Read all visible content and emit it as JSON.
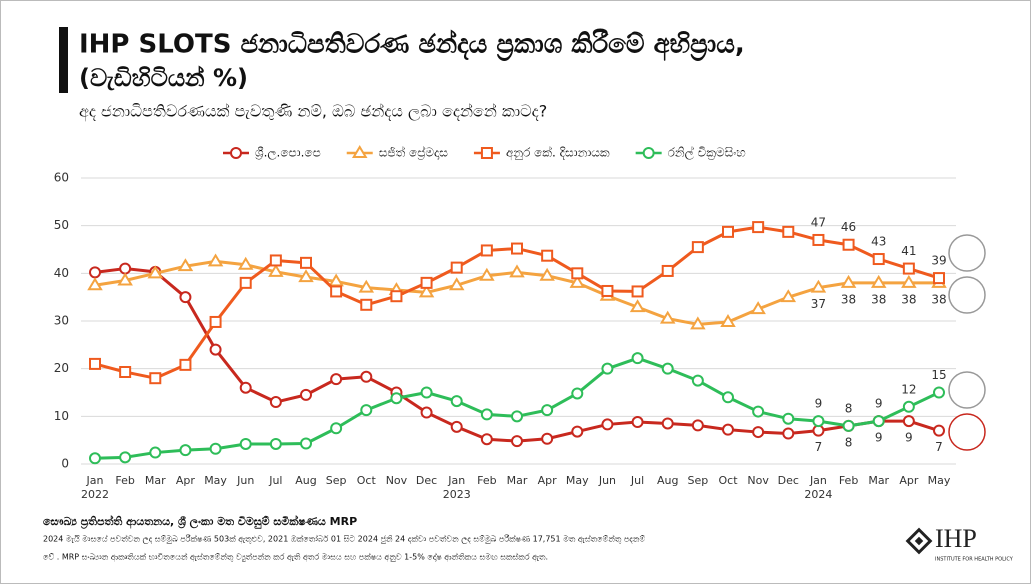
{
  "chart_data": {
    "type": "line",
    "title": "IHP SLOTS ජනාධිපතිවරණ ඡන්දය ප්‍රකාශ කිරීමේ අභිප්‍රාය,",
    "title_line2": "(වැඩිහිටියන් %)",
    "subtitle": "අද ජනාධිපතිවරණයක් පැවතුණි නම්, ඔබ ඡන්දය ලබා දෙන්නේ කාටද?",
    "categories": [
      "Jan",
      "Feb",
      "Mar",
      "Apr",
      "May",
      "Jun",
      "Jul",
      "Aug",
      "Sep",
      "Oct",
      "Nov",
      "Dec",
      "Jan",
      "Feb",
      "Mar",
      "Apr",
      "May",
      "Jun",
      "Jul",
      "Aug",
      "Sep",
      "Oct",
      "Nov",
      "Dec",
      "Jan",
      "Feb",
      "Mar",
      "Apr",
      "May"
    ],
    "year_labels": [
      {
        "category": 0,
        "label": "2022"
      },
      {
        "category": 12,
        "label": "2023"
      },
      {
        "category": 24,
        "label": "2024"
      }
    ],
    "ylim": [
      0,
      60
    ],
    "yticks": [
      0,
      10,
      20,
      30,
      40,
      50,
      60
    ],
    "grid": true,
    "series": [
      {
        "name": "ශ්‍රී.ල.පො.පෙ",
        "color": "#c8281e",
        "marker": "circle",
        "label_position": "below",
        "values": [
          40.2,
          41,
          40.3,
          35,
          24,
          16,
          13,
          14.5,
          17.8,
          18.3,
          15,
          10.8,
          7.8,
          5.2,
          4.8,
          5.3,
          6.8,
          8.3,
          8.8,
          8.5,
          8.1,
          7.2,
          6.7,
          6.4,
          7,
          8,
          9,
          9,
          7
        ],
        "value_labels": [
          null,
          null,
          null,
          null,
          null,
          null,
          null,
          null,
          null,
          null,
          null,
          null,
          null,
          null,
          null,
          null,
          null,
          null,
          null,
          null,
          null,
          null,
          null,
          null,
          7,
          8,
          9,
          9,
          7
        ]
      },
      {
        "name": "සජිත් ප්‍රේමදාස",
        "color": "#f4a340",
        "marker": "triangle",
        "label_position": "below",
        "values": [
          37.5,
          38.5,
          40,
          41.5,
          42.5,
          41.8,
          40.3,
          39.2,
          38.3,
          37,
          36.5,
          36,
          37.5,
          39.5,
          40.2,
          39.5,
          38,
          35.3,
          32.9,
          30.5,
          29.3,
          29.8,
          32.5,
          35,
          37,
          38,
          38,
          38,
          38
        ],
        "value_labels": [
          null,
          null,
          null,
          null,
          null,
          null,
          null,
          null,
          null,
          null,
          null,
          null,
          null,
          null,
          null,
          null,
          null,
          null,
          null,
          null,
          null,
          null,
          null,
          null,
          37,
          38,
          38,
          38,
          38
        ]
      },
      {
        "name": "අනුර කේ. දිසානායක",
        "color": "#ef5a1e",
        "marker": "square",
        "label_position": "above",
        "values": [
          21,
          19.3,
          18,
          20.8,
          29.8,
          38,
          42.7,
          42.2,
          36.2,
          33.4,
          35.2,
          38,
          41.2,
          44.8,
          45.2,
          43.7,
          40,
          36.3,
          36.2,
          40.5,
          45.5,
          48.7,
          49.7,
          48.7,
          47,
          46,
          43,
          41,
          39
        ],
        "value_labels": [
          null,
          null,
          null,
          null,
          null,
          null,
          null,
          null,
          null,
          null,
          null,
          null,
          null,
          null,
          null,
          null,
          null,
          null,
          null,
          null,
          null,
          null,
          null,
          null,
          47,
          46,
          43,
          41,
          39
        ]
      },
      {
        "name": "රනිල් වික්‍රමසිංහ",
        "color": "#2ebd59",
        "marker": "circle",
        "label_position": "above",
        "values": [
          1.2,
          1.4,
          2.4,
          2.9,
          3.2,
          4.2,
          4.2,
          4.3,
          7.5,
          11.3,
          13.8,
          15,
          13.2,
          10.4,
          10,
          11.3,
          14.8,
          20,
          22.2,
          20,
          17.5,
          14,
          11,
          9.5,
          9,
          8,
          9,
          12,
          15
        ],
        "value_labels": [
          null,
          null,
          null,
          null,
          null,
          null,
          null,
          null,
          null,
          null,
          null,
          null,
          null,
          null,
          null,
          null,
          null,
          null,
          null,
          null,
          null,
          null,
          null,
          null,
          9,
          8,
          9,
          12,
          15
        ]
      }
    ],
    "source": "සෞඛ්‍ය ප්‍රතිපත්ති ආයතනය, ශ්‍රී ලංකා මත විමසුම් සමීක්ෂණය MRP",
    "note_line1": "2024 මැයි මාසයේ පවත්වන ලද සම්මුඛ පරීක්ෂණ 503ක් ඇතුළුව, 2021 ඔක්තෝබර් 01 සිට 2024 ජුනි 24 දක්වා පවත්වන ලද සම්මුඛ පරීක්ෂණ 17,751 මත ඇස්තමේන්තු පදනම්",
    "note_line2": "වේ . MRP සංඛ්‍යාන ආකෘතියක් භාවිතයෙන් ඇස්තමේන්තු ව්‍යුත්පන්න කර ඇති අතර මාසය සහ පක්ෂය අනුව 1-5% දෝෂ ආන්තිකය සමඟ සකස්කර ඇත.",
    "logo": "IHP",
    "logo_caption": "INSTITUTE FOR HEALTH POLICY"
  }
}
